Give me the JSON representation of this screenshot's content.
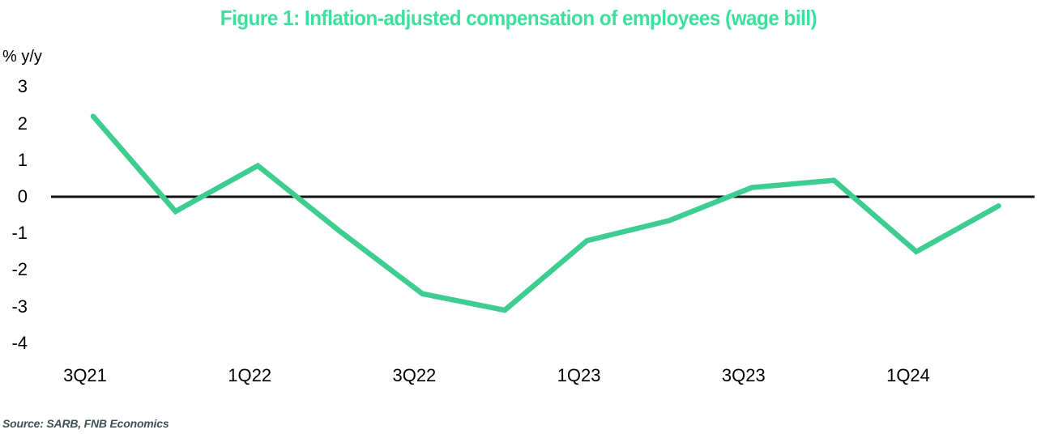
{
  "header": {
    "title": "Figure 1: Inflation-adjusted compensation of employees (wage bill)"
  },
  "axes": {
    "y_unit_label": "% y/y"
  },
  "footer": {
    "source": "Source: SARB, FNB Economics"
  },
  "colors": {
    "title": "#3be09c",
    "line": "#3dcd90",
    "axis_line": "#111111",
    "tick_text": "#000000",
    "source_text": "#3f5156"
  },
  "chart_data": {
    "type": "line",
    "title": "Figure 1: Inflation-adjusted compensation of employees (wage bill)",
    "ylabel": "% y/y",
    "xlabel": "",
    "categories": [
      "3Q21",
      "4Q21",
      "1Q22",
      "2Q22",
      "3Q22",
      "4Q22",
      "1Q23",
      "2Q23",
      "3Q23",
      "4Q23",
      "1Q24",
      "2Q24"
    ],
    "values": [
      2.2,
      -0.4,
      0.85,
      -0.95,
      -2.65,
      -3.1,
      -1.2,
      -0.65,
      0.25,
      0.45,
      -1.5,
      -0.25
    ],
    "x_tick_labels": [
      "3Q21",
      "1Q22",
      "3Q22",
      "1Q23",
      "3Q23",
      "1Q24"
    ],
    "y_ticks": [
      3,
      2,
      1,
      0,
      -1,
      -2,
      -3,
      -4
    ],
    "ylim": [
      -4.3,
      3.3
    ],
    "grid": false,
    "legend": false,
    "zero_line": true
  }
}
